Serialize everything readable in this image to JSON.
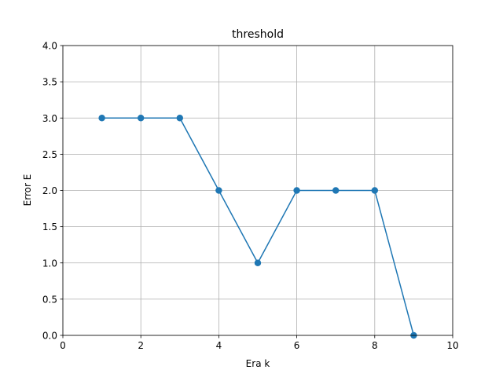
{
  "chart_data": {
    "type": "line",
    "title": "threshold",
    "xlabel": "Era  k",
    "ylabel": "Error  E",
    "xlim": [
      0,
      10
    ],
    "ylim": [
      0,
      4.0
    ],
    "xticks": [
      0,
      2,
      4,
      6,
      8,
      10
    ],
    "yticks": [
      0.0,
      0.5,
      1.0,
      1.5,
      2.0,
      2.5,
      3.0,
      3.5,
      4.0
    ],
    "xtick_labels": [
      "0",
      "2",
      "4",
      "6",
      "8",
      "10"
    ],
    "ytick_labels": [
      "0.0",
      "0.5",
      "1.0",
      "1.5",
      "2.0",
      "2.5",
      "3.0",
      "3.5",
      "4.0"
    ],
    "grid": true,
    "series": [
      {
        "x": [
          1,
          2,
          3,
          4,
          5,
          6,
          7,
          8,
          9
        ],
        "y": [
          3,
          3,
          3,
          2,
          1,
          2,
          2,
          2,
          0
        ],
        "color": "#1f77b4",
        "marker": "circle"
      }
    ]
  }
}
